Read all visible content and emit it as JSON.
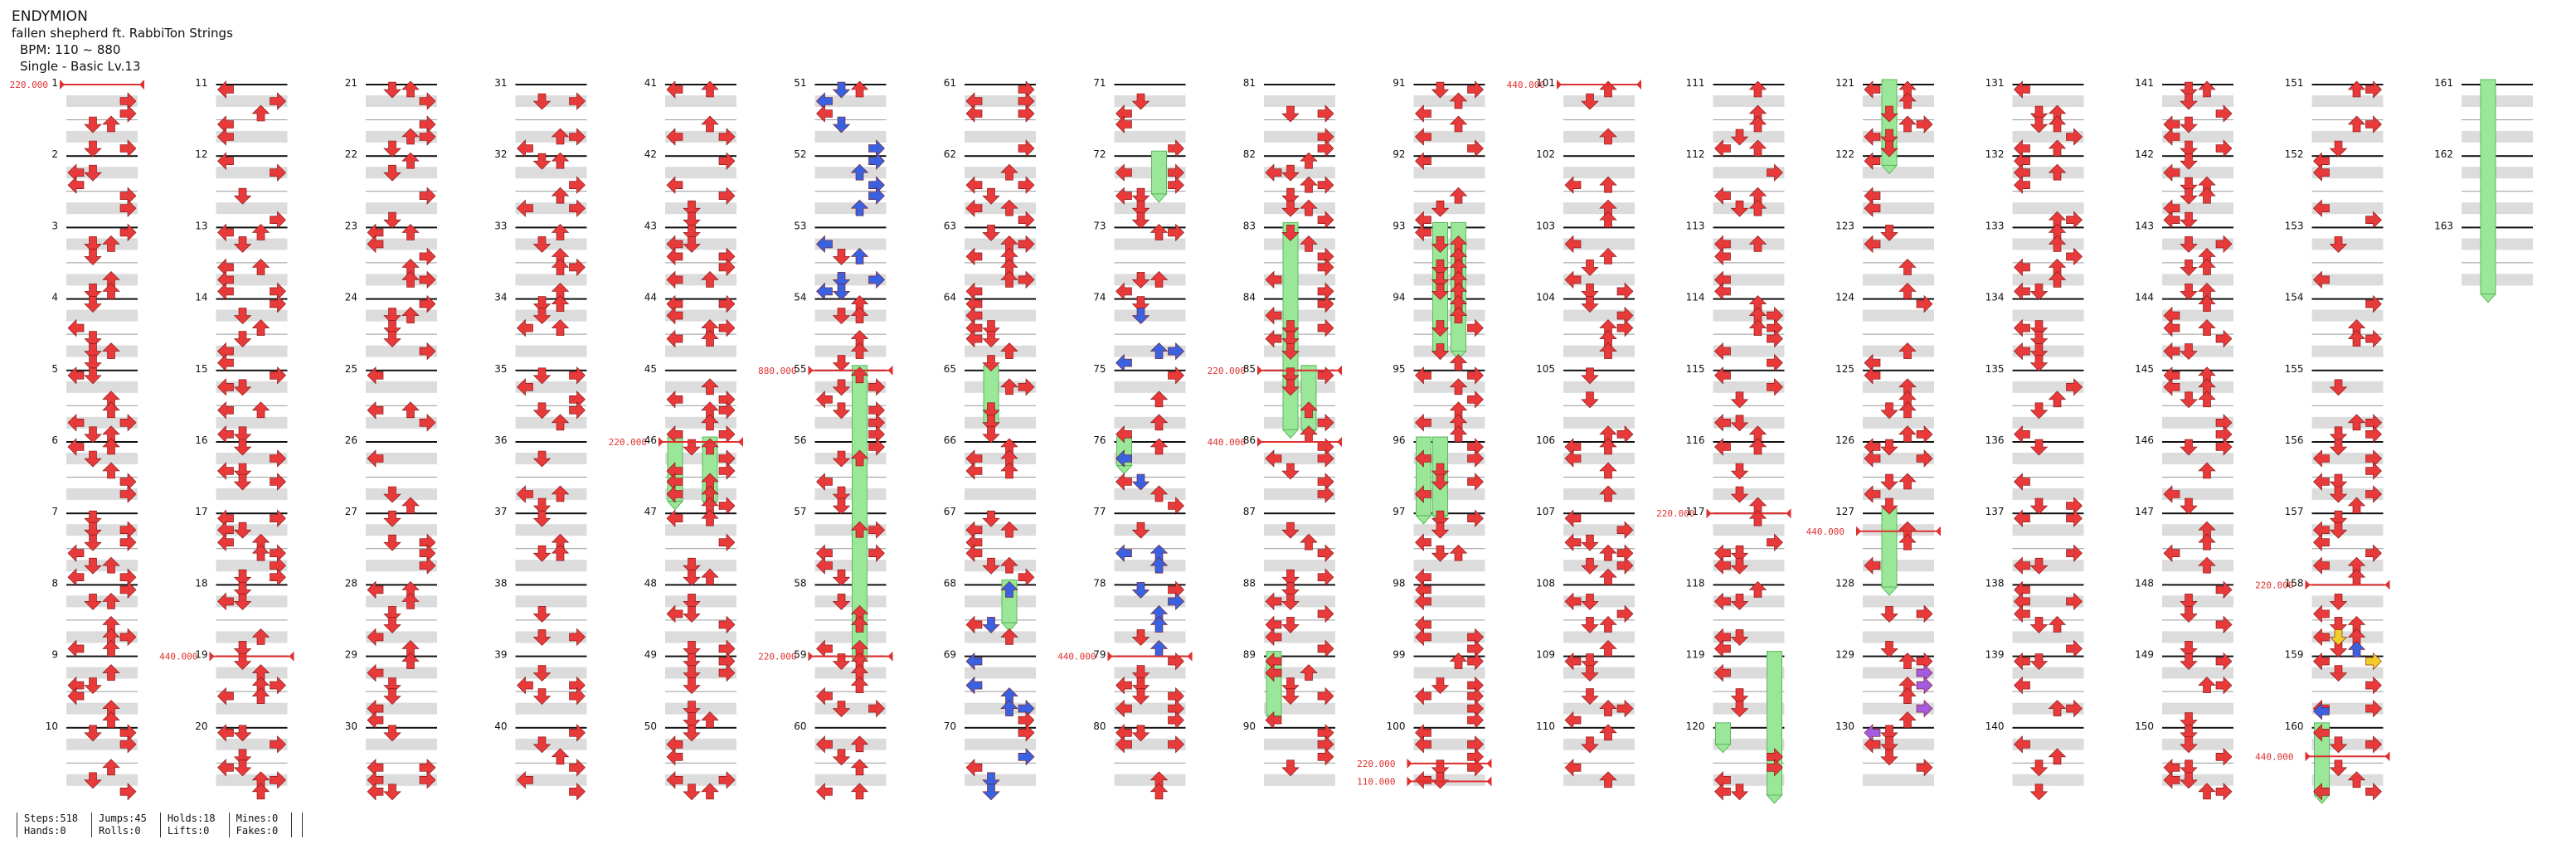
{
  "song": {
    "title": "ENDYMION",
    "artist": "fallen shepherd ft. RabbiTon Strings",
    "bpm_label": "BPM: 110 ~ 880",
    "chart_label": "Single - Basic Lv.13"
  },
  "measures": {
    "first": 1,
    "last": 163,
    "per_column": 10,
    "visible_last_column": 3
  },
  "bpm_changes": [
    {
      "measure": 1,
      "label": "220.000"
    },
    {
      "measure": 19,
      "label": "440.000"
    },
    {
      "measure": 46,
      "label": "220.000"
    },
    {
      "measure": 55,
      "label": "880.000"
    },
    {
      "measure": 59,
      "label": "220.000"
    },
    {
      "measure": 79,
      "label": "440.000"
    },
    {
      "measure": 85,
      "label": "220.000"
    },
    {
      "measure": 86,
      "label": "440.000"
    },
    {
      "measure": 100.5,
      "label": "220.000"
    },
    {
      "measure": 100.75,
      "label": "110.000"
    },
    {
      "measure": 101,
      "label": "440.000"
    },
    {
      "measure": 117,
      "label": "220.000"
    },
    {
      "measure": 127.25,
      "label": "440.000"
    },
    {
      "measure": 158,
      "label": "220.000"
    },
    {
      "measure": 160.4,
      "label": "440.000"
    }
  ],
  "stats": [
    {
      "top": "Steps:518",
      "bottom": "Hands:0"
    },
    {
      "top": "Jumps:45",
      "bottom": "Rolls:0"
    },
    {
      "top": "Holds:18",
      "bottom": "Lifts:0"
    },
    {
      "top": "Mines:0",
      "bottom": "Fakes:0"
    }
  ],
  "colors": {
    "red_note": "#e83a3a",
    "blue_note": "#3a62e0",
    "yellow_note": "#f2cc2a",
    "purple_note": "#a55be0",
    "hold": "#9ae79a",
    "hold_border": "#5cb85c",
    "band": "#dcdcdc",
    "bpm_line": "#e03030"
  }
}
